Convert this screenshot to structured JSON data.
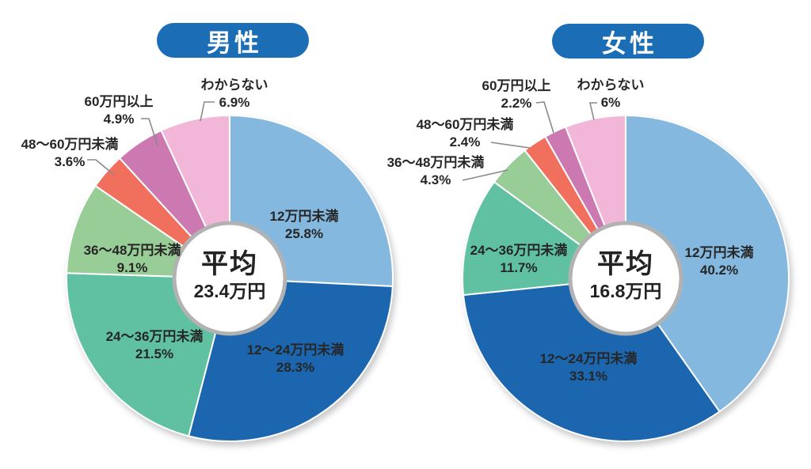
{
  "page": {
    "background_color": "#ffffff",
    "text_color": "#262626",
    "accent_color": "#1B6DB6",
    "leader_line_color": "#8a8a8a",
    "center_circle_border_color": "#b2b2b2"
  },
  "chart_data": [
    {
      "type": "pie",
      "variant": "donut-with-center-badge",
      "title": "男性",
      "center_label": "平均",
      "center_value": "23.4万円",
      "start_angle_deg": 0,
      "direction": "clockwise",
      "legend": "none",
      "slices": [
        {
          "label": "12万円未満",
          "value": 25.8,
          "display": "25.8%",
          "color": "#85B8DF"
        },
        {
          "label": "12〜24万円未満",
          "value": 28.3,
          "display": "28.3%",
          "color": "#1B66AE"
        },
        {
          "label": "24〜36万円未満",
          "value": 21.5,
          "display": "21.5%",
          "color": "#5FC1A2"
        },
        {
          "label": "36〜48万円未満",
          "value": 9.1,
          "display": "9.1%",
          "color": "#98CD97"
        },
        {
          "label": "48〜60万円未満",
          "value": 3.6,
          "display": "3.6%",
          "color": "#F1705D"
        },
        {
          "label": "60万円以上",
          "value": 4.9,
          "display": "4.9%",
          "color": "#CC79B2"
        },
        {
          "label": "わからない",
          "value": 6.9,
          "display": "6.9%",
          "color": "#F2B7D8"
        }
      ]
    },
    {
      "type": "pie",
      "variant": "donut-with-center-badge",
      "title": "女性",
      "center_label": "平均",
      "center_value": "16.8万円",
      "start_angle_deg": 0,
      "direction": "clockwise",
      "legend": "none",
      "slices": [
        {
          "label": "12万円未満",
          "value": 40.2,
          "display": "40.2%",
          "color": "#85B8DF"
        },
        {
          "label": "12〜24万円未満",
          "value": 33.1,
          "display": "33.1%",
          "color": "#1B66AE"
        },
        {
          "label": "24〜36万円未満",
          "value": 11.7,
          "display": "11.7%",
          "color": "#5FC1A2"
        },
        {
          "label": "36〜48万円未満",
          "value": 4.3,
          "display": "4.3%",
          "color": "#98CD97"
        },
        {
          "label": "48〜60万円未満",
          "value": 2.4,
          "display": "2.4%",
          "color": "#F1705D"
        },
        {
          "label": "60万円以上",
          "value": 2.2,
          "display": "2.2%",
          "color": "#CC79B2"
        },
        {
          "label": "わからない",
          "value": 6,
          "display": "6%",
          "color": "#F2B7D8"
        }
      ]
    }
  ]
}
